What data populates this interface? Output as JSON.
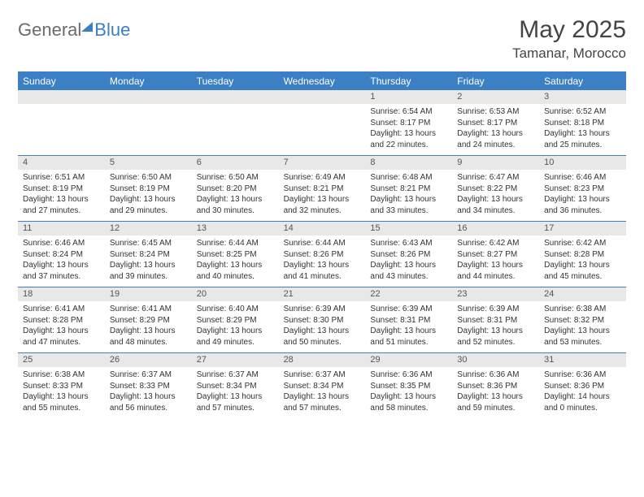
{
  "logo": {
    "part1": "General",
    "part2": "Blue"
  },
  "title": "May 2025",
  "location": "Tamanar, Morocco",
  "colors": {
    "accent": "#3b7fc4",
    "header_text": "#444444",
    "day_header_bg": "#e8e8e8",
    "cell_text": "#333333",
    "logo_gray": "#6b6b6b"
  },
  "weekdays": [
    "Sunday",
    "Monday",
    "Tuesday",
    "Wednesday",
    "Thursday",
    "Friday",
    "Saturday"
  ],
  "weeks": [
    {
      "days": [
        {
          "num": "",
          "lines": []
        },
        {
          "num": "",
          "lines": []
        },
        {
          "num": "",
          "lines": []
        },
        {
          "num": "",
          "lines": []
        },
        {
          "num": "1",
          "lines": [
            "Sunrise: 6:54 AM",
            "Sunset: 8:17 PM",
            "Daylight: 13 hours",
            "and 22 minutes."
          ]
        },
        {
          "num": "2",
          "lines": [
            "Sunrise: 6:53 AM",
            "Sunset: 8:17 PM",
            "Daylight: 13 hours",
            "and 24 minutes."
          ]
        },
        {
          "num": "3",
          "lines": [
            "Sunrise: 6:52 AM",
            "Sunset: 8:18 PM",
            "Daylight: 13 hours",
            "and 25 minutes."
          ]
        }
      ]
    },
    {
      "days": [
        {
          "num": "4",
          "lines": [
            "Sunrise: 6:51 AM",
            "Sunset: 8:19 PM",
            "Daylight: 13 hours",
            "and 27 minutes."
          ]
        },
        {
          "num": "5",
          "lines": [
            "Sunrise: 6:50 AM",
            "Sunset: 8:19 PM",
            "Daylight: 13 hours",
            "and 29 minutes."
          ]
        },
        {
          "num": "6",
          "lines": [
            "Sunrise: 6:50 AM",
            "Sunset: 8:20 PM",
            "Daylight: 13 hours",
            "and 30 minutes."
          ]
        },
        {
          "num": "7",
          "lines": [
            "Sunrise: 6:49 AM",
            "Sunset: 8:21 PM",
            "Daylight: 13 hours",
            "and 32 minutes."
          ]
        },
        {
          "num": "8",
          "lines": [
            "Sunrise: 6:48 AM",
            "Sunset: 8:21 PM",
            "Daylight: 13 hours",
            "and 33 minutes."
          ]
        },
        {
          "num": "9",
          "lines": [
            "Sunrise: 6:47 AM",
            "Sunset: 8:22 PM",
            "Daylight: 13 hours",
            "and 34 minutes."
          ]
        },
        {
          "num": "10",
          "lines": [
            "Sunrise: 6:46 AM",
            "Sunset: 8:23 PM",
            "Daylight: 13 hours",
            "and 36 minutes."
          ]
        }
      ]
    },
    {
      "days": [
        {
          "num": "11",
          "lines": [
            "Sunrise: 6:46 AM",
            "Sunset: 8:24 PM",
            "Daylight: 13 hours",
            "and 37 minutes."
          ]
        },
        {
          "num": "12",
          "lines": [
            "Sunrise: 6:45 AM",
            "Sunset: 8:24 PM",
            "Daylight: 13 hours",
            "and 39 minutes."
          ]
        },
        {
          "num": "13",
          "lines": [
            "Sunrise: 6:44 AM",
            "Sunset: 8:25 PM",
            "Daylight: 13 hours",
            "and 40 minutes."
          ]
        },
        {
          "num": "14",
          "lines": [
            "Sunrise: 6:44 AM",
            "Sunset: 8:26 PM",
            "Daylight: 13 hours",
            "and 41 minutes."
          ]
        },
        {
          "num": "15",
          "lines": [
            "Sunrise: 6:43 AM",
            "Sunset: 8:26 PM",
            "Daylight: 13 hours",
            "and 43 minutes."
          ]
        },
        {
          "num": "16",
          "lines": [
            "Sunrise: 6:42 AM",
            "Sunset: 8:27 PM",
            "Daylight: 13 hours",
            "and 44 minutes."
          ]
        },
        {
          "num": "17",
          "lines": [
            "Sunrise: 6:42 AM",
            "Sunset: 8:28 PM",
            "Daylight: 13 hours",
            "and 45 minutes."
          ]
        }
      ]
    },
    {
      "days": [
        {
          "num": "18",
          "lines": [
            "Sunrise: 6:41 AM",
            "Sunset: 8:28 PM",
            "Daylight: 13 hours",
            "and 47 minutes."
          ]
        },
        {
          "num": "19",
          "lines": [
            "Sunrise: 6:41 AM",
            "Sunset: 8:29 PM",
            "Daylight: 13 hours",
            "and 48 minutes."
          ]
        },
        {
          "num": "20",
          "lines": [
            "Sunrise: 6:40 AM",
            "Sunset: 8:29 PM",
            "Daylight: 13 hours",
            "and 49 minutes."
          ]
        },
        {
          "num": "21",
          "lines": [
            "Sunrise: 6:39 AM",
            "Sunset: 8:30 PM",
            "Daylight: 13 hours",
            "and 50 minutes."
          ]
        },
        {
          "num": "22",
          "lines": [
            "Sunrise: 6:39 AM",
            "Sunset: 8:31 PM",
            "Daylight: 13 hours",
            "and 51 minutes."
          ]
        },
        {
          "num": "23",
          "lines": [
            "Sunrise: 6:39 AM",
            "Sunset: 8:31 PM",
            "Daylight: 13 hours",
            "and 52 minutes."
          ]
        },
        {
          "num": "24",
          "lines": [
            "Sunrise: 6:38 AM",
            "Sunset: 8:32 PM",
            "Daylight: 13 hours",
            "and 53 minutes."
          ]
        }
      ]
    },
    {
      "days": [
        {
          "num": "25",
          "lines": [
            "Sunrise: 6:38 AM",
            "Sunset: 8:33 PM",
            "Daylight: 13 hours",
            "and 55 minutes."
          ]
        },
        {
          "num": "26",
          "lines": [
            "Sunrise: 6:37 AM",
            "Sunset: 8:33 PM",
            "Daylight: 13 hours",
            "and 56 minutes."
          ]
        },
        {
          "num": "27",
          "lines": [
            "Sunrise: 6:37 AM",
            "Sunset: 8:34 PM",
            "Daylight: 13 hours",
            "and 57 minutes."
          ]
        },
        {
          "num": "28",
          "lines": [
            "Sunrise: 6:37 AM",
            "Sunset: 8:34 PM",
            "Daylight: 13 hours",
            "and 57 minutes."
          ]
        },
        {
          "num": "29",
          "lines": [
            "Sunrise: 6:36 AM",
            "Sunset: 8:35 PM",
            "Daylight: 13 hours",
            "and 58 minutes."
          ]
        },
        {
          "num": "30",
          "lines": [
            "Sunrise: 6:36 AM",
            "Sunset: 8:36 PM",
            "Daylight: 13 hours",
            "and 59 minutes."
          ]
        },
        {
          "num": "31",
          "lines": [
            "Sunrise: 6:36 AM",
            "Sunset: 8:36 PM",
            "Daylight: 14 hours",
            "and 0 minutes."
          ]
        }
      ]
    }
  ]
}
